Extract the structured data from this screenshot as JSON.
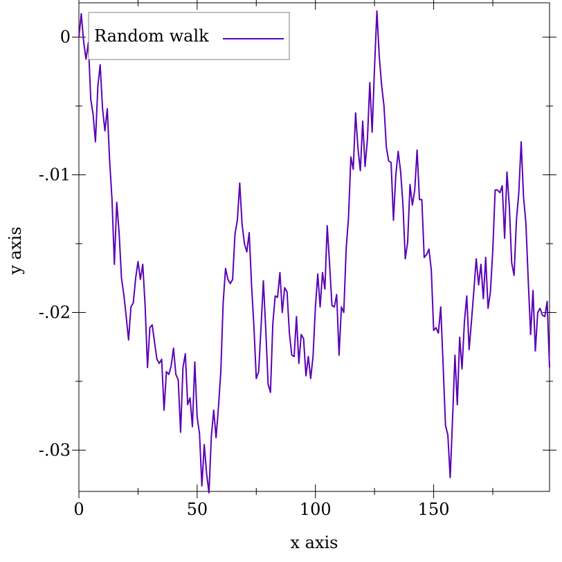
{
  "chart_data": {
    "type": "line",
    "xlabel": "x axis",
    "ylabel": "y axis",
    "xlim": [
      0,
      199
    ],
    "ylim": [
      -0.033,
      0.0025
    ],
    "xticks": [
      0,
      50,
      100,
      150
    ],
    "xtick_labels": [
      "0",
      "50",
      "100",
      "150"
    ],
    "yticks": [
      0,
      -0.01,
      -0.02,
      -0.03
    ],
    "ytick_labels": [
      "0",
      "-.01",
      "-.02",
      "-.03"
    ],
    "grid": false,
    "legend_position": "top-left",
    "series": [
      {
        "name": "Random walk",
        "color": "#5a00b4",
        "x": [
          0,
          1,
          2,
          3,
          4,
          5,
          6,
          7,
          8,
          9,
          10,
          11,
          12,
          13,
          14,
          15,
          16,
          17,
          18,
          19,
          20,
          21,
          22,
          23,
          24,
          25,
          26,
          27,
          28,
          29,
          30,
          31,
          32,
          33,
          34,
          35,
          36,
          37,
          38,
          39,
          40,
          41,
          42,
          43,
          44,
          45,
          46,
          47,
          48,
          49,
          50,
          51,
          52,
          53,
          54,
          55,
          56,
          57,
          58,
          59,
          60,
          61,
          62,
          63,
          64,
          65,
          66,
          67,
          68,
          69,
          70,
          71,
          72,
          73,
          74,
          75,
          76,
          77,
          78,
          79,
          80,
          81,
          82,
          83,
          84,
          85,
          86,
          87,
          88,
          89,
          90,
          91,
          92,
          93,
          94,
          95,
          96,
          97,
          98,
          99,
          100,
          101,
          102,
          103,
          104,
          105,
          106,
          107,
          108,
          109,
          110,
          111,
          112,
          113,
          114,
          115,
          116,
          117,
          118,
          119,
          120,
          121,
          122,
          123,
          124,
          125,
          126,
          127,
          128,
          129,
          130,
          131,
          132,
          133,
          134,
          135,
          136,
          137,
          138,
          139,
          140,
          141,
          142,
          143,
          144,
          145,
          146,
          147,
          148,
          149,
          150,
          151,
          152,
          153,
          154,
          155,
          156,
          157,
          158,
          159,
          160,
          161,
          162,
          163,
          164,
          165,
          166,
          167,
          168,
          169,
          170,
          171,
          172,
          173,
          174,
          175,
          176,
          177,
          178,
          179,
          180,
          181,
          182,
          183,
          184,
          185,
          186,
          187,
          188,
          189,
          190,
          191,
          192,
          193,
          194,
          195,
          196,
          197,
          198,
          199
        ],
        "y": [
          0,
          0.0017,
          -0.0003,
          -0.0016,
          -0.0004,
          -0.0045,
          -0.0056,
          -0.0076,
          -0.0036,
          -0.002,
          -0.0052,
          -0.0068,
          -0.0052,
          -0.009,
          -0.0118,
          -0.0165,
          -0.012,
          -0.0142,
          -0.0175,
          -0.0187,
          -0.0203,
          -0.022,
          -0.0196,
          -0.0193,
          -0.0175,
          -0.0163,
          -0.0176,
          -0.0165,
          -0.0195,
          -0.024,
          -0.0211,
          -0.0209,
          -0.0222,
          -0.0234,
          -0.0237,
          -0.0234,
          -0.0271,
          -0.0243,
          -0.0245,
          -0.0239,
          -0.0226,
          -0.0245,
          -0.0249,
          -0.0287,
          -0.024,
          -0.023,
          -0.0267,
          -0.0262,
          -0.0283,
          -0.0236,
          -0.0276,
          -0.0288,
          -0.0326,
          -0.0296,
          -0.0317,
          -0.0331,
          -0.029,
          -0.0271,
          -0.0291,
          -0.0269,
          -0.0243,
          -0.0193,
          -0.0168,
          -0.0176,
          -0.0179,
          -0.0176,
          -0.0143,
          -0.0133,
          -0.0106,
          -0.0136,
          -0.015,
          -0.0156,
          -0.0142,
          -0.018,
          -0.021,
          -0.0248,
          -0.0243,
          -0.0211,
          -0.0177,
          -0.0212,
          -0.0252,
          -0.0258,
          -0.0208,
          -0.0188,
          -0.0189,
          -0.0171,
          -0.02,
          -0.0182,
          -0.0185,
          -0.0215,
          -0.0231,
          -0.0232,
          -0.0203,
          -0.0237,
          -0.0216,
          -0.0219,
          -0.0246,
          -0.0232,
          -0.0248,
          -0.0232,
          -0.0196,
          -0.0172,
          -0.0196,
          -0.0171,
          -0.0183,
          -0.0137,
          -0.0165,
          -0.0195,
          -0.0196,
          -0.0187,
          -0.0231,
          -0.0196,
          -0.02,
          -0.0154,
          -0.0131,
          -0.0087,
          -0.0096,
          -0.0055,
          -0.0081,
          -0.0097,
          -0.0061,
          -0.0094,
          -0.0074,
          -0.0033,
          -0.0069,
          -0.0022,
          0.0019,
          -0.0014,
          -0.0035,
          -0.005,
          -0.008,
          -0.009,
          -0.0091,
          -0.0133,
          -0.01,
          -0.0083,
          -0.0097,
          -0.0121,
          -0.0161,
          -0.0149,
          -0.0107,
          -0.0122,
          -0.0111,
          -0.0082,
          -0.0118,
          -0.0118,
          -0.016,
          -0.0158,
          -0.0154,
          -0.0169,
          -0.0213,
          -0.0211,
          -0.0215,
          -0.0196,
          -0.0238,
          -0.0282,
          -0.0289,
          -0.032,
          -0.0277,
          -0.0231,
          -0.0267,
          -0.0218,
          -0.0241,
          -0.0207,
          -0.0188,
          -0.0227,
          -0.0206,
          -0.0184,
          -0.0161,
          -0.018,
          -0.0165,
          -0.019,
          -0.016,
          -0.0197,
          -0.0185,
          -0.0155,
          -0.0111,
          -0.0111,
          -0.0113,
          -0.0108,
          -0.0146,
          -0.0098,
          -0.0123,
          -0.0164,
          -0.0173,
          -0.0133,
          -0.0113,
          -0.0076,
          -0.0116,
          -0.0135,
          -0.0177,
          -0.0216,
          -0.0184,
          -0.0228,
          -0.02,
          -0.0197,
          -0.0202,
          -0.0203,
          -0.0192,
          -0.024
        ]
      }
    ]
  }
}
